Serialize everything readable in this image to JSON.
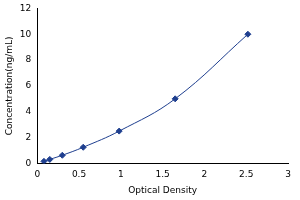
{
  "chart_data": {
    "type": "scatter",
    "x_label": "Optical Density",
    "y_label": "Concentration(ng/mL)",
    "x": [
      0.08,
      0.15,
      0.3,
      0.55,
      0.98,
      1.65,
      2.52
    ],
    "values": [
      0.16,
      0.31,
      0.63,
      1.25,
      2.5,
      5,
      10
    ],
    "color": "#1f3f8f",
    "marker": "diamond",
    "line_style": "solid",
    "xlim": [
      0,
      3
    ],
    "xticks": [
      0,
      0.5,
      1,
      1.5,
      2,
      2.5,
      3
    ],
    "ylim": [
      0,
      12
    ],
    "yticks": [
      0,
      2,
      4,
      6,
      8,
      10,
      12
    ],
    "grid": false
  }
}
